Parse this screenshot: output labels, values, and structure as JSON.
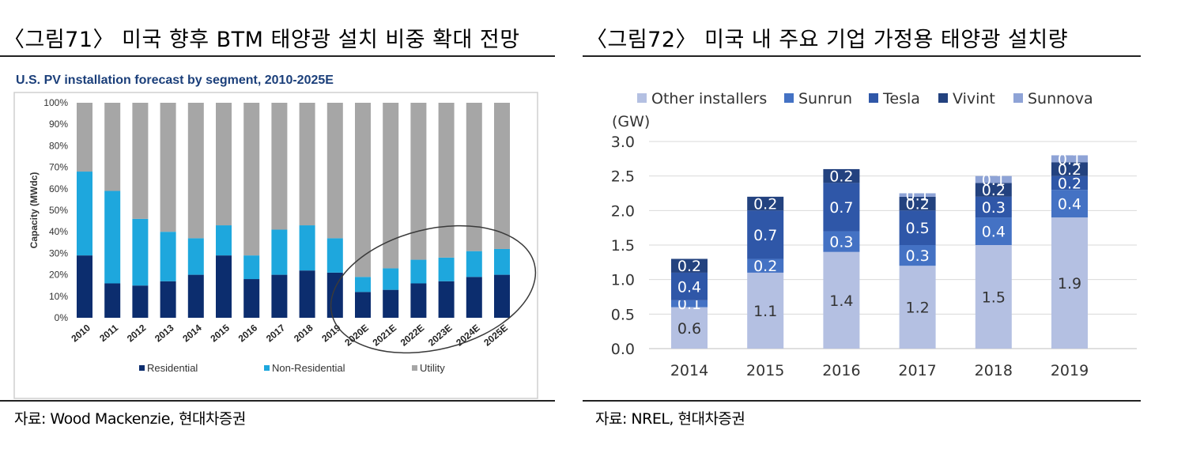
{
  "left": {
    "figure_title": "〈그림71〉 미국 향후 BTM 태양광 설치 비중 확대 전망",
    "source": "자료: Wood Mackenzie, 현대차증권"
  },
  "right": {
    "figure_title": "〈그림72〉 미국 내 주요 기업 가정용 태양광 설치량",
    "source": "자료: NREL, 현대차증권"
  },
  "colors": {
    "residential": "#0c2d6e",
    "non_residential": "#1ea7dd",
    "utility": "#a6a6a6",
    "other_installers": "#b4c0e2",
    "sunrun": "#4472c4",
    "tesla": "#2f57a8",
    "vivint": "#23427f",
    "sunnova": "#8ea3d6"
  },
  "chart_data": [
    {
      "type": "bar",
      "stacked": true,
      "title": "U.S. PV installation forecast by segment, 2010-2025E",
      "ylabel": "Capacity (MWdc)",
      "xlabel": "",
      "categories": [
        "2010",
        "2011",
        "2012",
        "2013",
        "2014",
        "2015",
        "2016",
        "2017",
        "2018",
        "2019",
        "2020E",
        "2021E",
        "2022E",
        "2023E",
        "2024E",
        "2025E"
      ],
      "series": [
        {
          "name": "Residential",
          "values": [
            29,
            16,
            15,
            17,
            20,
            29,
            18,
            20,
            22,
            21,
            12,
            13,
            16,
            17,
            19,
            20
          ]
        },
        {
          "name": "Non-Residential",
          "values": [
            39,
            43,
            31,
            23,
            17,
            14,
            11,
            21,
            21,
            16,
            7,
            10,
            11,
            11,
            12,
            12
          ]
        },
        {
          "name": "Utility",
          "values": [
            32,
            41,
            54,
            60,
            63,
            57,
            71,
            59,
            57,
            63,
            81,
            77,
            73,
            72,
            69,
            68
          ]
        }
      ],
      "ylim": [
        0,
        100
      ],
      "yticks": [
        "0%",
        "10%",
        "20%",
        "30%",
        "40%",
        "50%",
        "60%",
        "70%",
        "80%",
        "90%",
        "100%"
      ],
      "legend": "bottom",
      "annotation": "ellipse around 2020E-2025E"
    },
    {
      "type": "bar",
      "stacked": true,
      "title": "",
      "unit_label": "(GW)",
      "xlabel": "",
      "categories": [
        "2014",
        "2015",
        "2016",
        "2017",
        "2018",
        "2019"
      ],
      "series": [
        {
          "name": "Other installers",
          "values": [
            0.6,
            1.1,
            1.4,
            1.2,
            1.5,
            1.9
          ],
          "labels": [
            "0.6",
            "1.1",
            "1.4",
            "1.2",
            "1.5",
            "1.9"
          ]
        },
        {
          "name": "Sunrun",
          "values": [
            0.1,
            0.2,
            0.3,
            0.3,
            0.4,
            0.4
          ],
          "labels": [
            "0.1",
            "0.2",
            "0.3",
            "0.3",
            "0.4",
            "0.4"
          ]
        },
        {
          "name": "Tesla",
          "values": [
            0.4,
            0.7,
            0.7,
            0.5,
            0.3,
            0.2
          ],
          "labels": [
            "0.4",
            "0.7",
            "0.7",
            "0.5",
            "0.3",
            "0.2"
          ]
        },
        {
          "name": "Vivint",
          "values": [
            0.2,
            0.2,
            0.2,
            0.2,
            0.2,
            0.2
          ],
          "labels": [
            "0.2",
            "0.2",
            "0.2",
            "0.2",
            "0.2",
            "0.2"
          ]
        },
        {
          "name": "Sunnova",
          "values": [
            0,
            0,
            0,
            0.05,
            0.1,
            0.1
          ],
          "labels": [
            "",
            "",
            "",
            "0.1",
            "0.1",
            "0.1"
          ]
        }
      ],
      "ylim": [
        0,
        3.0
      ],
      "yticks": [
        "0.0",
        "0.5",
        "1.0",
        "1.5",
        "2.0",
        "2.5",
        "3.0"
      ],
      "legend": "top"
    }
  ]
}
